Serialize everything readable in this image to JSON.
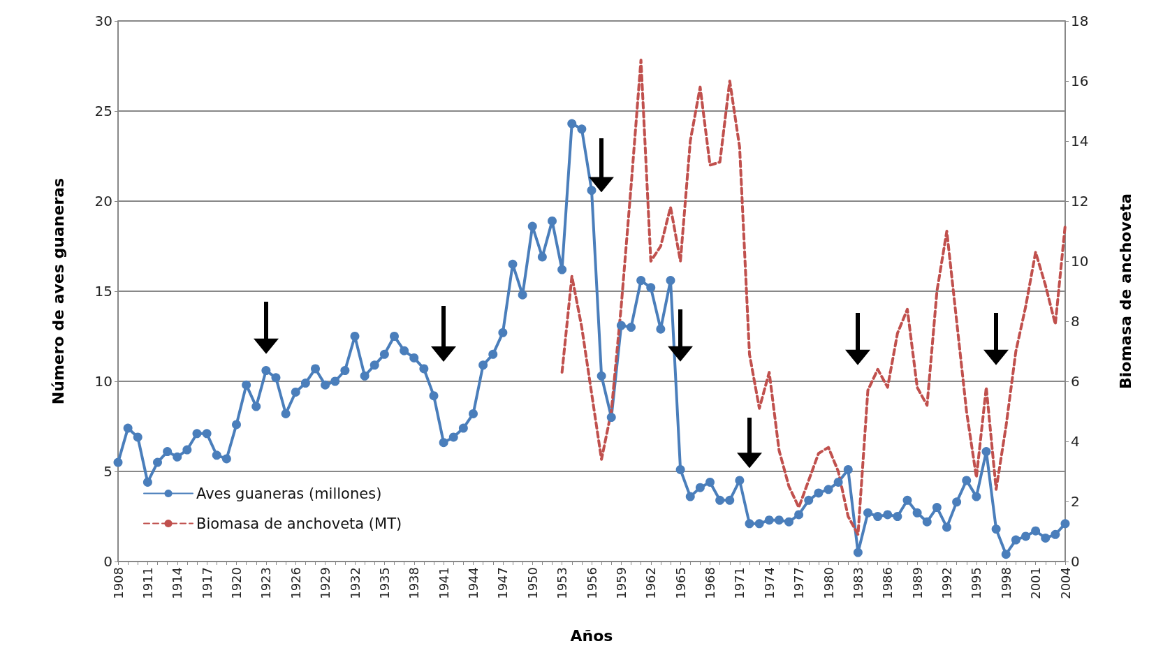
{
  "chart_data": {
    "type": "line",
    "xlabel": "Años",
    "ylabel": "Número de aves guaneras",
    "y2label": "Biomasa de anchoveta",
    "categories": [
      "1908",
      null,
      null,
      "1911",
      null,
      null,
      "1914",
      null,
      null,
      "1917",
      null,
      null,
      "1920",
      null,
      null,
      "1923",
      null,
      null,
      "1926",
      null,
      null,
      "1929",
      null,
      null,
      "1932",
      null,
      null,
      "1935",
      null,
      null,
      "1938",
      null,
      null,
      "1941",
      null,
      null,
      "1944",
      null,
      null,
      "1947",
      null,
      null,
      "1950",
      null,
      null,
      "1953",
      null,
      null,
      "1956",
      null,
      null,
      "1959",
      null,
      null,
      "1962",
      null,
      null,
      "1965",
      null,
      null,
      "1968",
      null,
      null,
      "1971",
      null,
      null,
      "1974",
      null,
      null,
      "1977",
      null,
      null,
      "1980",
      null,
      null,
      "1983",
      null,
      null,
      "1986",
      null,
      null,
      "1989",
      null,
      null,
      "1992",
      null,
      null,
      "1995",
      null,
      null,
      "1998",
      null,
      null,
      "2001",
      null,
      null,
      "2004"
    ],
    "series": [
      {
        "name": "Aves guaneras (millones)",
        "color": "#4a7ebb",
        "marker": "circle",
        "line_style": "solid",
        "values": [
          5.5,
          7.4,
          6.9,
          4.4,
          5.5,
          6.1,
          5.8,
          6.2,
          7.1,
          7.1,
          5.9,
          5.7,
          7.6,
          9.8,
          8.6,
          10.6,
          10.2,
          8.2,
          9.4,
          9.9,
          10.7,
          9.8,
          10.0,
          10.6,
          12.5,
          10.3,
          10.9,
          11.5,
          12.5,
          11.7,
          11.3,
          10.7,
          9.2,
          6.6,
          6.9,
          7.4,
          8.2,
          10.9,
          11.5,
          12.7,
          16.5,
          14.8,
          18.6,
          16.9,
          18.9,
          16.2,
          24.3,
          24.0,
          20.6,
          10.3,
          8.0,
          13.1,
          13.0,
          15.6,
          15.2,
          12.9,
          15.6,
          5.1,
          3.6,
          4.1,
          4.4,
          3.4,
          3.4,
          4.5,
          2.1,
          2.1,
          2.3,
          2.3,
          2.2,
          2.6,
          3.4,
          3.8,
          4.0,
          4.4,
          5.1,
          0.5,
          2.7,
          2.5,
          2.6,
          2.5,
          3.4,
          2.7,
          2.2,
          3.0,
          1.9,
          3.3,
          4.5,
          3.6,
          6.1,
          1.8,
          0.4,
          1.2,
          1.4,
          1.7,
          1.3,
          1.5,
          2.1
        ]
      },
      {
        "name": "Biomasa de anchoveta (MT)",
        "color": "#c0504d",
        "marker": "none",
        "line_style": "dashed",
        "axis": "y2",
        "values": [
          null,
          null,
          null,
          null,
          null,
          null,
          null,
          null,
          null,
          null,
          null,
          null,
          null,
          null,
          null,
          null,
          null,
          null,
          null,
          null,
          null,
          null,
          null,
          null,
          null,
          null,
          null,
          null,
          null,
          null,
          null,
          null,
          null,
          null,
          null,
          null,
          null,
          null,
          null,
          null,
          null,
          null,
          null,
          null,
          null,
          6.3,
          9.5,
          7.8,
          5.6,
          3.4,
          5.0,
          8.5,
          12.5,
          16.7,
          10.0,
          10.5,
          11.8,
          10.0,
          14.0,
          15.8,
          13.2,
          13.3,
          16.0,
          13.8,
          6.9,
          5.1,
          6.3,
          3.7,
          2.5,
          1.8,
          2.7,
          3.6,
          3.8,
          3.0,
          1.5,
          0.9,
          5.7,
          6.4,
          5.8,
          7.6,
          8.4,
          5.8,
          5.2,
          9.0,
          11.0,
          8.0,
          5.0,
          2.8,
          5.8,
          2.4,
          4.5,
          7.0,
          8.5,
          10.3,
          9.2,
          7.9,
          11.2
        ]
      }
    ],
    "ylim": [
      0,
      30
    ],
    "yticks": [
      0,
      5,
      10,
      15,
      20,
      25,
      30
    ],
    "y2lim": [
      0,
      18
    ],
    "y2ticks": [
      0,
      2,
      4,
      6,
      8,
      10,
      12,
      14,
      16,
      18
    ],
    "grid": "y",
    "legend": "bottom left"
  }
}
